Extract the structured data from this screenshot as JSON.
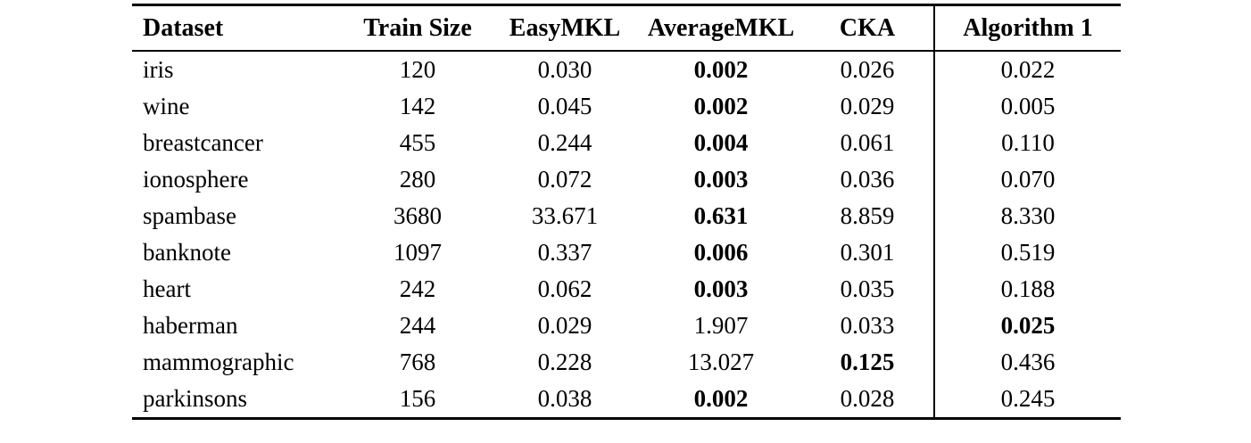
{
  "page": {
    "background": "#ffffff",
    "text_color": "#000000"
  },
  "table": {
    "columns": [
      {
        "key": "dataset",
        "label": "Dataset",
        "align": "left"
      },
      {
        "key": "train-size",
        "label": "Train Size",
        "align": "center"
      },
      {
        "key": "easymkl",
        "label": "EasyMKL",
        "align": "center"
      },
      {
        "key": "averagemkl",
        "label": "AverageMKL",
        "align": "center"
      },
      {
        "key": "cka",
        "label": "CKA",
        "align": "center"
      },
      {
        "key": "algorithm1",
        "label": "Algorithm 1",
        "align": "center"
      }
    ],
    "rows": [
      {
        "cells": [
          {
            "text": "iris"
          },
          {
            "text": "120"
          },
          {
            "text": "0.030"
          },
          {
            "text": "0.002",
            "bold": true
          },
          {
            "text": "0.026"
          },
          {
            "text": "0.022"
          }
        ]
      },
      {
        "cells": [
          {
            "text": "wine"
          },
          {
            "text": "142"
          },
          {
            "text": "0.045"
          },
          {
            "text": "0.002",
            "bold": true
          },
          {
            "text": "0.029"
          },
          {
            "text": "0.005"
          }
        ]
      },
      {
        "cells": [
          {
            "text": "breastcancer"
          },
          {
            "text": "455"
          },
          {
            "text": "0.244"
          },
          {
            "text": "0.004",
            "bold": true
          },
          {
            "text": "0.061"
          },
          {
            "text": "0.110"
          }
        ]
      },
      {
        "cells": [
          {
            "text": "ionosphere"
          },
          {
            "text": "280"
          },
          {
            "text": "0.072"
          },
          {
            "text": "0.003",
            "bold": true
          },
          {
            "text": "0.036"
          },
          {
            "text": "0.070"
          }
        ]
      },
      {
        "cells": [
          {
            "text": "spambase"
          },
          {
            "text": "3680"
          },
          {
            "text": "33.671"
          },
          {
            "text": "0.631",
            "bold": true
          },
          {
            "text": "8.859"
          },
          {
            "text": "8.330"
          }
        ]
      },
      {
        "cells": [
          {
            "text": "banknote"
          },
          {
            "text": "1097"
          },
          {
            "text": "0.337"
          },
          {
            "text": "0.006",
            "bold": true
          },
          {
            "text": "0.301"
          },
          {
            "text": "0.519"
          }
        ]
      },
      {
        "cells": [
          {
            "text": "heart"
          },
          {
            "text": "242"
          },
          {
            "text": "0.062"
          },
          {
            "text": "0.003",
            "bold": true
          },
          {
            "text": "0.035"
          },
          {
            "text": "0.188"
          }
        ]
      },
      {
        "cells": [
          {
            "text": "haberman"
          },
          {
            "text": "244"
          },
          {
            "text": "0.029"
          },
          {
            "text": "1.907"
          },
          {
            "text": "0.033"
          },
          {
            "text": "0.025",
            "bold": true
          }
        ]
      },
      {
        "cells": [
          {
            "text": "mammographic"
          },
          {
            "text": "768"
          },
          {
            "text": "0.228"
          },
          {
            "text": "13.027"
          },
          {
            "text": "0.125",
            "bold": true
          },
          {
            "text": "0.436"
          }
        ]
      },
      {
        "cells": [
          {
            "text": "parkinsons"
          },
          {
            "text": "156"
          },
          {
            "text": "0.038"
          },
          {
            "text": "0.002",
            "bold": true
          },
          {
            "text": "0.028"
          },
          {
            "text": "0.245"
          }
        ]
      }
    ]
  }
}
